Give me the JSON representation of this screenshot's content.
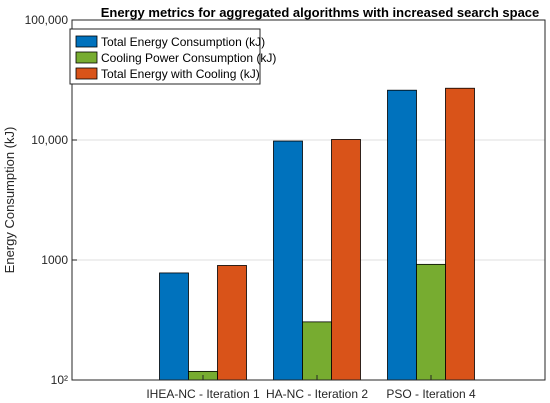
{
  "chart_data": {
    "type": "bar",
    "title": "Energy metrics for aggregated algorithms with increased search space",
    "xlabel": "",
    "ylabel": "Energy Consumption (kJ)",
    "yscale": "log",
    "ylim": [
      100,
      100000
    ],
    "yticks": [
      100,
      1000,
      10000,
      100000
    ],
    "ytick_labels": [
      "10²",
      "1000",
      "10,000",
      "100,000"
    ],
    "grid": true,
    "legend_position": "top-left",
    "categories": [
      "IHEA-NC - Iteration 1",
      "HA-NC - Iteration 2",
      "PSO - Iteration 4"
    ],
    "series": [
      {
        "name": "Total Energy Consumption (kJ)",
        "color": "#0072BD",
        "values": [
          780,
          9800,
          26000
        ]
      },
      {
        "name": "Cooling Power Consumption (kJ)",
        "color": "#77AC30",
        "values": [
          118,
          305,
          920
        ]
      },
      {
        "name": "Total Energy with Cooling (kJ)",
        "color": "#D95319",
        "values": [
          900,
          10100,
          27000
        ]
      }
    ]
  }
}
